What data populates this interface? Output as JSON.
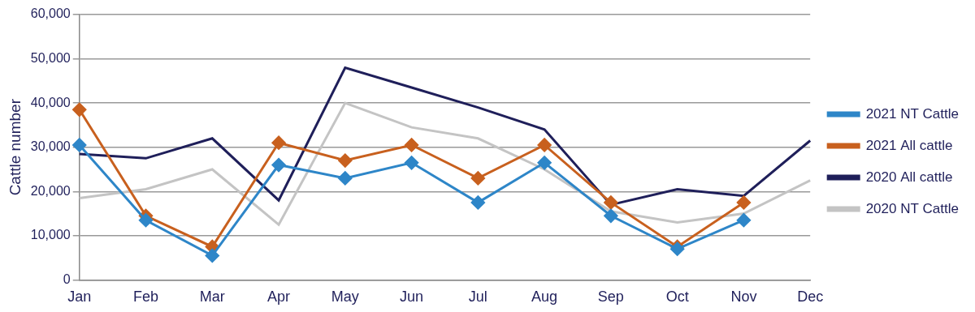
{
  "chart_data": {
    "type": "line",
    "y_label": "Cattle number",
    "categories": [
      "Jan",
      "Feb",
      "Mar",
      "Apr",
      "May",
      "Jun",
      "Jul",
      "Aug",
      "Sep",
      "Oct",
      "Nov",
      "Dec"
    ],
    "series": [
      {
        "name": "2021 NT Cattle",
        "color": "#2e86c8",
        "marker": "diamond",
        "values": [
          30500,
          13500,
          5500,
          26000,
          23000,
          26500,
          17500,
          26500,
          14500,
          7000,
          13500,
          null
        ]
      },
      {
        "name": "2021 All cattle",
        "color": "#c8601e",
        "marker": "diamond",
        "values": [
          38500,
          14500,
          7500,
          31000,
          27000,
          30500,
          23000,
          30500,
          17500,
          7500,
          17500,
          null
        ]
      },
      {
        "name": "2020 All cattle",
        "color": "#1f1f5a",
        "marker": "none",
        "values": [
          28500,
          27500,
          32000,
          18000,
          48000,
          43500,
          39000,
          34000,
          17000,
          20500,
          19000,
          31500
        ]
      },
      {
        "name": "2020 NT Cattle",
        "color": "#c4c4c4",
        "marker": "none",
        "values": [
          18500,
          20500,
          25000,
          12500,
          40000,
          34500,
          32000,
          25000,
          15500,
          13000,
          15000,
          22500
        ]
      }
    ],
    "ylim": [
      0,
      60000
    ],
    "yticks": [
      0,
      {
        "value": 10000,
        "label": "10,000"
      },
      {
        "value": 20000,
        "label": "20,000"
      },
      {
        "value": 30000,
        "label": "30,000"
      },
      {
        "value": 40000,
        "label": "40,000"
      },
      {
        "value": 50000,
        "label": "50,000"
      },
      {
        "value": 60000,
        "label": "60,000"
      }
    ],
    "grid": "y",
    "legend": "right"
  }
}
